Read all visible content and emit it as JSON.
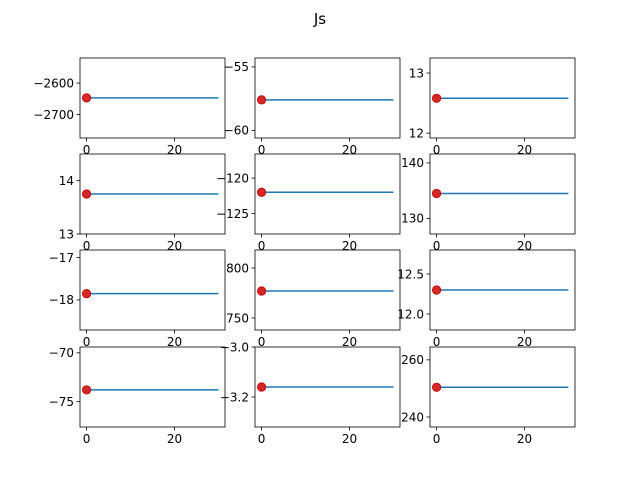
{
  "figure": {
    "title": "Js"
  },
  "colors": {
    "line": "#1f77b4",
    "marker": "#d62728",
    "marker_edge": "#c00000",
    "axes": "#000000",
    "background": "#ffffff"
  },
  "chart_data": [
    {
      "type": "line",
      "title": "",
      "x": [
        0,
        30
      ],
      "series": [
        {
          "values": [
            -2647,
            -2647
          ]
        }
      ],
      "marker": {
        "x": 0,
        "y": -2647
      },
      "xlim": [
        -1.5,
        31.5
      ],
      "ylim": [
        -2775,
        -2520
      ],
      "xticks": [
        0,
        20
      ],
      "yticks": [
        -2600,
        -2700
      ],
      "ytick_labels": [
        "−2600",
        "−2700"
      ],
      "xtick_labels": [
        "0",
        "20"
      ]
    },
    {
      "type": "line",
      "title": "",
      "x": [
        0,
        30
      ],
      "series": [
        {
          "values": [
            -57.6,
            -57.6
          ]
        }
      ],
      "marker": {
        "x": 0,
        "y": -57.6
      },
      "xlim": [
        -1.5,
        31.5
      ],
      "ylim": [
        -60.6,
        -54.3
      ],
      "xticks": [
        0,
        20
      ],
      "yticks": [
        -55,
        -60
      ],
      "ytick_labels": [
        "−55",
        "−60"
      ],
      "xtick_labels": [
        "0",
        "20"
      ]
    },
    {
      "type": "line",
      "title": "",
      "x": [
        0,
        30
      ],
      "series": [
        {
          "values": [
            12.58,
            12.58
          ]
        }
      ],
      "marker": {
        "x": 0,
        "y": 12.58
      },
      "xlim": [
        -1.5,
        31.5
      ],
      "ylim": [
        11.92,
        13.25
      ],
      "xticks": [
        0,
        20
      ],
      "yticks": [
        13,
        12
      ],
      "ytick_labels": [
        "13",
        "12"
      ],
      "xtick_labels": [
        "0",
        "20"
      ]
    },
    {
      "type": "line",
      "title": "",
      "x": [
        0,
        30
      ],
      "series": [
        {
          "values": [
            13.75,
            13.75
          ]
        }
      ],
      "marker": {
        "x": 0,
        "y": 13.75
      },
      "xlim": [
        -1.5,
        31.5
      ],
      "ylim": [
        13.0,
        14.5
      ],
      "xticks": [
        0,
        20
      ],
      "yticks": [
        14,
        13
      ],
      "ytick_labels": [
        "14",
        "13"
      ],
      "xtick_labels": [
        "0",
        "20"
      ]
    },
    {
      "type": "line",
      "title": "",
      "x": [
        0,
        30
      ],
      "series": [
        {
          "values": [
            -122.0,
            -122.0
          ]
        }
      ],
      "marker": {
        "x": 0,
        "y": -122.0
      },
      "xlim": [
        -1.5,
        31.5
      ],
      "ylim": [
        -127.9,
        -116.6
      ],
      "xticks": [
        0,
        20
      ],
      "yticks": [
        -120,
        -125
      ],
      "ytick_labels": [
        "−120",
        "−125"
      ],
      "xtick_labels": [
        "0",
        "20"
      ]
    },
    {
      "type": "line",
      "title": "",
      "x": [
        0,
        30
      ],
      "series": [
        {
          "values": [
            134.5,
            134.5
          ]
        }
      ],
      "marker": {
        "x": 0,
        "y": 134.5
      },
      "xlim": [
        -1.5,
        31.5
      ],
      "ylim": [
        127.2,
        141.6
      ],
      "xticks": [
        0,
        20
      ],
      "yticks": [
        140,
        130
      ],
      "ytick_labels": [
        "140",
        "130"
      ],
      "xtick_labels": [
        "0",
        "20"
      ]
    },
    {
      "type": "line",
      "title": "",
      "x": [
        0,
        30
      ],
      "series": [
        {
          "values": [
            -17.85,
            -17.85
          ]
        }
      ],
      "marker": {
        "x": 0,
        "y": -17.85
      },
      "xlim": [
        -1.5,
        31.5
      ],
      "ylim": [
        -18.71,
        -16.82
      ],
      "xticks": [
        0,
        20
      ],
      "yticks": [
        -17,
        -18
      ],
      "ytick_labels": [
        "−17",
        "−18"
      ],
      "xtick_labels": [
        "0",
        "20"
      ]
    },
    {
      "type": "line",
      "title": "",
      "x": [
        0,
        30
      ],
      "series": [
        {
          "values": [
            777,
            777
          ]
        }
      ],
      "marker": {
        "x": 0,
        "y": 777
      },
      "xlim": [
        -1.5,
        31.5
      ],
      "ylim": [
        738,
        818
      ],
      "xticks": [
        0,
        20
      ],
      "yticks": [
        800,
        750
      ],
      "ytick_labels": [
        "800",
        "750"
      ],
      "xtick_labels": [
        "0",
        "20"
      ]
    },
    {
      "type": "line",
      "title": "",
      "x": [
        0,
        30
      ],
      "series": [
        {
          "values": [
            12.3,
            12.3
          ]
        }
      ],
      "marker": {
        "x": 0,
        "y": 12.3
      },
      "xlim": [
        -1.5,
        31.5
      ],
      "ylim": [
        11.8,
        12.8
      ],
      "xticks": [
        0,
        20
      ],
      "yticks": [
        12.5,
        12.0
      ],
      "ytick_labels": [
        "12.5",
        "12.0"
      ],
      "xtick_labels": [
        "0",
        "20"
      ]
    },
    {
      "type": "line",
      "title": "",
      "x": [
        0,
        30
      ],
      "series": [
        {
          "values": [
            -73.8,
            -73.8
          ]
        }
      ],
      "marker": {
        "x": 0,
        "y": -73.8
      },
      "xlim": [
        -1.5,
        31.5
      ],
      "ylim": [
        -77.6,
        -69.4
      ],
      "xticks": [
        0,
        20
      ],
      "yticks": [
        -70,
        -75
      ],
      "ytick_labels": [
        "−70",
        "−75"
      ],
      "xtick_labels": [
        "0",
        "20"
      ]
    },
    {
      "type": "line",
      "title": "",
      "x": [
        0,
        30
      ],
      "series": [
        {
          "values": [
            -3.16,
            -3.16
          ]
        }
      ],
      "marker": {
        "x": 0,
        "y": -3.16
      },
      "xlim": [
        -1.5,
        31.5
      ],
      "ylim": [
        -3.32,
        -3.0
      ],
      "xticks": [
        0,
        20
      ],
      "yticks": [
        -3.0,
        -3.2
      ],
      "ytick_labels": [
        "−3.0",
        "−3.2"
      ],
      "xtick_labels": [
        "0",
        "20"
      ]
    },
    {
      "type": "line",
      "title": "",
      "x": [
        0,
        30
      ],
      "series": [
        {
          "values": [
            250.4,
            250.4
          ]
        }
      ],
      "marker": {
        "x": 0,
        "y": 250.4
      },
      "xlim": [
        -1.5,
        31.5
      ],
      "ylim": [
        236.5,
        264.5
      ],
      "xticks": [
        0,
        20
      ],
      "yticks": [
        260,
        240
      ],
      "ytick_labels": [
        "260",
        "240"
      ],
      "xtick_labels": [
        "0",
        "20"
      ]
    }
  ]
}
